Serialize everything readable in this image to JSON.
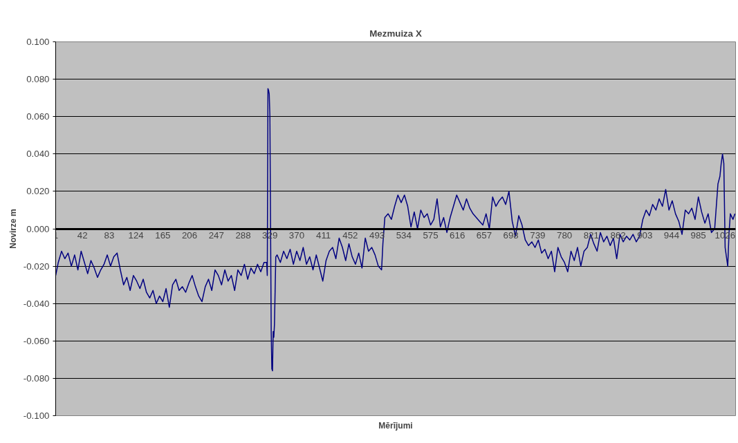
{
  "chart_data": {
    "type": "line",
    "title": "Mezmuiza X",
    "xlabel": "Mērījumi",
    "ylabel": "Novirze m",
    "x": [
      1,
      5,
      10,
      15,
      20,
      25,
      30,
      35,
      40,
      45,
      50,
      55,
      60,
      65,
      70,
      75,
      80,
      85,
      90,
      95,
      100,
      105,
      110,
      115,
      120,
      125,
      130,
      135,
      140,
      145,
      150,
      155,
      160,
      165,
      170,
      175,
      180,
      185,
      190,
      195,
      200,
      205,
      210,
      215,
      220,
      225,
      230,
      235,
      240,
      245,
      250,
      255,
      260,
      265,
      270,
      275,
      280,
      285,
      290,
      295,
      300,
      305,
      310,
      315,
      320,
      324,
      325,
      326,
      327,
      328,
      329,
      331,
      332,
      333,
      334,
      335,
      336,
      338,
      340,
      345,
      350,
      355,
      360,
      365,
      370,
      375,
      380,
      385,
      390,
      395,
      400,
      405,
      410,
      415,
      420,
      425,
      430,
      435,
      440,
      445,
      450,
      455,
      460,
      465,
      470,
      475,
      480,
      485,
      490,
      495,
      500,
      502,
      505,
      510,
      515,
      520,
      525,
      530,
      535,
      540,
      545,
      550,
      555,
      560,
      565,
      570,
      575,
      580,
      585,
      590,
      595,
      600,
      605,
      610,
      615,
      620,
      625,
      630,
      635,
      640,
      645,
      650,
      655,
      660,
      665,
      670,
      675,
      680,
      685,
      690,
      695,
      700,
      705,
      710,
      715,
      720,
      725,
      730,
      735,
      740,
      745,
      750,
      755,
      760,
      765,
      770,
      775,
      780,
      785,
      790,
      795,
      800,
      805,
      810,
      815,
      820,
      825,
      830,
      835,
      840,
      845,
      850,
      855,
      860,
      865,
      870,
      875,
      880,
      885,
      890,
      895,
      900,
      905,
      910,
      915,
      920,
      925,
      930,
      935,
      940,
      945,
      950,
      955,
      960,
      965,
      970,
      975,
      980,
      985,
      990,
      995,
      1000,
      1005,
      1010,
      1015,
      1018,
      1020,
      1022,
      1024,
      1026,
      1028,
      1030,
      1032,
      1034,
      1038,
      1041
    ],
    "series": [
      {
        "color": "#000080",
        "values": [
          -0.025,
          -0.018,
          -0.012,
          -0.016,
          -0.013,
          -0.02,
          -0.014,
          -0.022,
          -0.012,
          -0.018,
          -0.024,
          -0.017,
          -0.021,
          -0.026,
          -0.022,
          -0.019,
          -0.014,
          -0.02,
          -0.015,
          -0.013,
          -0.022,
          -0.03,
          -0.026,
          -0.033,
          -0.025,
          -0.028,
          -0.032,
          -0.027,
          -0.034,
          -0.037,
          -0.033,
          -0.04,
          -0.036,
          -0.039,
          -0.032,
          -0.042,
          -0.03,
          -0.027,
          -0.033,
          -0.031,
          -0.034,
          -0.029,
          -0.025,
          -0.031,
          -0.036,
          -0.039,
          -0.031,
          -0.027,
          -0.033,
          -0.022,
          -0.025,
          -0.03,
          -0.022,
          -0.028,
          -0.025,
          -0.033,
          -0.022,
          -0.025,
          -0.019,
          -0.027,
          -0.021,
          -0.024,
          -0.019,
          -0.023,
          -0.018,
          -0.018,
          -0.025,
          0.075,
          0.074,
          0.072,
          0.06,
          -0.055,
          -0.075,
          -0.076,
          -0.055,
          -0.058,
          -0.051,
          -0.015,
          -0.014,
          -0.018,
          -0.012,
          -0.016,
          -0.011,
          -0.019,
          -0.012,
          -0.017,
          -0.01,
          -0.019,
          -0.015,
          -0.022,
          -0.014,
          -0.021,
          -0.028,
          -0.017,
          -0.012,
          -0.01,
          -0.016,
          -0.005,
          -0.01,
          -0.017,
          -0.008,
          -0.015,
          -0.019,
          -0.013,
          -0.021,
          -0.005,
          -0.012,
          -0.01,
          -0.014,
          -0.02,
          -0.022,
          -0.008,
          0.006,
          0.008,
          0.005,
          0.012,
          0.018,
          0.014,
          0.018,
          0.012,
          0.001,
          0.009,
          0.0,
          0.01,
          0.006,
          0.008,
          0.002,
          0.005,
          0.016,
          0.001,
          0.006,
          -0.002,
          0.006,
          0.012,
          0.018,
          0.014,
          0.01,
          0.016,
          0.011,
          0.008,
          0.006,
          0.004,
          0.002,
          0.008,
          0.0,
          0.017,
          0.012,
          0.015,
          0.017,
          0.013,
          0.02,
          0.004,
          -0.004,
          0.007,
          0.002,
          -0.006,
          -0.009,
          -0.007,
          -0.01,
          -0.006,
          -0.013,
          -0.011,
          -0.016,
          -0.012,
          -0.023,
          -0.01,
          -0.015,
          -0.018,
          -0.023,
          -0.012,
          -0.017,
          -0.01,
          -0.02,
          -0.012,
          -0.01,
          -0.003,
          -0.008,
          -0.012,
          -0.002,
          -0.007,
          -0.004,
          -0.009,
          -0.005,
          -0.016,
          -0.003,
          -0.007,
          -0.004,
          -0.006,
          -0.003,
          -0.007,
          -0.004,
          0.005,
          0.01,
          0.007,
          0.013,
          0.01,
          0.016,
          0.012,
          0.021,
          0.01,
          0.015,
          0.008,
          0.004,
          -0.003,
          0.01,
          0.008,
          0.011,
          0.005,
          0.017,
          0.009,
          0.003,
          0.008,
          -0.002,
          0.0,
          0.024,
          0.028,
          0.035,
          0.04,
          0.035,
          -0.01,
          -0.015,
          -0.02,
          -0.002,
          0.008,
          0.005,
          0.008
        ]
      }
    ],
    "xlim": [
      1,
      1042
    ],
    "xticks": [
      1,
      42,
      83,
      124,
      165,
      206,
      247,
      288,
      329,
      370,
      411,
      452,
      493,
      534,
      575,
      616,
      657,
      698,
      739,
      780,
      821,
      862,
      903,
      944,
      985,
      1026
    ],
    "ylim": [
      -0.1,
      0.1
    ],
    "yticks": [
      {
        "value": -0.1,
        "label": "-0.100"
      },
      {
        "value": -0.08,
        "label": "-0.080"
      },
      {
        "value": -0.06,
        "label": "-0.060"
      },
      {
        "value": -0.04,
        "label": "-0.040"
      },
      {
        "value": -0.02,
        "label": "-0.020"
      },
      {
        "value": 0,
        "label": "0.000"
      },
      {
        "value": 0.02,
        "label": "0.020"
      },
      {
        "value": 0.04,
        "label": "0.040"
      },
      {
        "value": 0.06,
        "label": "0.060"
      },
      {
        "value": 0.08,
        "label": "0.080"
      },
      {
        "value": 0.1,
        "label": "0.100"
      }
    ],
    "grid": "y",
    "marker": "none",
    "line_style": "solid"
  }
}
